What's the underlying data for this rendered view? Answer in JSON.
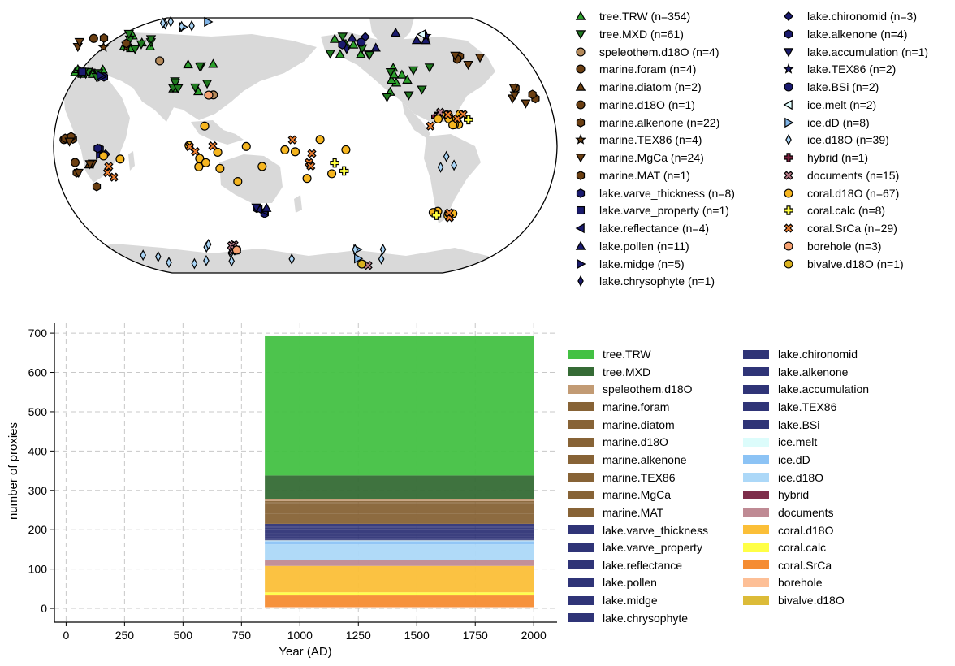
{
  "chart_data": [
    {
      "type": "scatter",
      "subtype": "map",
      "projection": "Robinson",
      "legend_placement": "right",
      "legend_columns": 2,
      "series": [
        {
          "name": "tree.TRW (n=354)",
          "marker": "triangle-up",
          "color": "#2ca02c"
        },
        {
          "name": "tree.MXD (n=61)",
          "marker": "triangle-down",
          "color": "#1f7a1f"
        },
        {
          "name": "speleothem.d18O (n=4)",
          "marker": "circle",
          "color": "#b58a5a"
        },
        {
          "name": "marine.foram (n=4)",
          "marker": "circle",
          "color": "#6b3f12"
        },
        {
          "name": "marine.diatom (n=2)",
          "marker": "triangle-up",
          "color": "#6b3f12"
        },
        {
          "name": "marine.d18O (n=1)",
          "marker": "circle",
          "color": "#6b3f12"
        },
        {
          "name": "marine.alkenone (n=22)",
          "marker": "hexagon",
          "color": "#6b3f12"
        },
        {
          "name": "marine.TEX86 (n=4)",
          "marker": "star",
          "color": "#6b3f12"
        },
        {
          "name": "marine.MgCa (n=24)",
          "marker": "triangle-down",
          "color": "#6b3f12"
        },
        {
          "name": "marine.MAT (n=1)",
          "marker": "hexagon",
          "color": "#6b3f12"
        },
        {
          "name": "lake.varve_thickness (n=8)",
          "marker": "hexagon",
          "color": "#1a1a6e"
        },
        {
          "name": "lake.varve_property (n=1)",
          "marker": "square",
          "color": "#1a1a6e"
        },
        {
          "name": "lake.reflectance (n=4)",
          "marker": "triangle-left",
          "color": "#1a1a6e"
        },
        {
          "name": "lake.pollen (n=11)",
          "marker": "triangle-up",
          "color": "#1a1a6e"
        },
        {
          "name": "lake.midge (n=5)",
          "marker": "triangle-right",
          "color": "#1a1a6e"
        },
        {
          "name": "lake.chrysophyte (n=1)",
          "marker": "thin-diamond",
          "color": "#1a1a6e"
        },
        {
          "name": "lake.chironomid (n=3)",
          "marker": "diamond",
          "color": "#1a1a6e"
        },
        {
          "name": "lake.alkenone (n=4)",
          "marker": "hexagon",
          "color": "#1a1a6e"
        },
        {
          "name": "lake.accumulation (n=1)",
          "marker": "triangle-down",
          "color": "#1a1a6e"
        },
        {
          "name": "lake.TEX86 (n=2)",
          "marker": "star",
          "color": "#1a1a6e"
        },
        {
          "name": "lake.BSi (n=2)",
          "marker": "circle",
          "color": "#1a1a6e"
        },
        {
          "name": "ice.melt (n=2)",
          "marker": "triangle-left",
          "color": "#e0ffff"
        },
        {
          "name": "ice.dD (n=8)",
          "marker": "triangle-right",
          "color": "#7fb3e6"
        },
        {
          "name": "ice.d18O (n=39)",
          "marker": "thin-diamond",
          "color": "#a9d4f5"
        },
        {
          "name": "hybrid (n=1)",
          "marker": "plus",
          "color": "#7a1f3d"
        },
        {
          "name": "documents (n=15)",
          "marker": "x",
          "color": "#c0808f"
        },
        {
          "name": "coral.d18O (n=67)",
          "marker": "circle",
          "color": "#f5b51f"
        },
        {
          "name": "coral.calc (n=8)",
          "marker": "plus",
          "color": "#ffff40"
        },
        {
          "name": "coral.SrCa (n=29)",
          "marker": "x",
          "color": "#f08030"
        },
        {
          "name": "borehole (n=3)",
          "marker": "circle",
          "color": "#f5a070"
        },
        {
          "name": "bivalve.d18O (n=1)",
          "marker": "circle",
          "color": "#d9b11f"
        }
      ]
    },
    {
      "type": "area",
      "stacked": true,
      "xlabel": "Year (AD)",
      "ylabel": "number of proxies",
      "xlim": [
        -50,
        2100
      ],
      "ylim": [
        -35,
        725
      ],
      "xticks": [
        "0",
        "250",
        "500",
        "750",
        "1000",
        "1250",
        "1500",
        "1750",
        "2000"
      ],
      "yticks": [
        "0",
        "100",
        "200",
        "300",
        "400",
        "500",
        "600",
        "700"
      ],
      "grid": true,
      "legend_placement": "right",
      "legend_columns": 2,
      "x_range": [
        850,
        2000
      ],
      "series": [
        {
          "name": "tree.TRW",
          "value": 354,
          "color": "#43c143"
        },
        {
          "name": "tree.MXD",
          "value": 61,
          "color": "#356b35"
        },
        {
          "name": "speleothem.d18O",
          "value": 4,
          "color": "#c29b74"
        },
        {
          "name": "marine.foram",
          "value": 4,
          "color": "#876336"
        },
        {
          "name": "marine.diatom",
          "value": 2,
          "color": "#876336"
        },
        {
          "name": "marine.d18O",
          "value": 1,
          "color": "#876336"
        },
        {
          "name": "marine.alkenone",
          "value": 22,
          "color": "#876336"
        },
        {
          "name": "marine.TEX86",
          "value": 4,
          "color": "#876336"
        },
        {
          "name": "marine.MgCa",
          "value": 24,
          "color": "#876336"
        },
        {
          "name": "marine.MAT",
          "value": 1,
          "color": "#876336"
        },
        {
          "name": "lake.varve_thickness",
          "value": 8,
          "color": "#2f3477"
        },
        {
          "name": "lake.varve_property",
          "value": 1,
          "color": "#2f3477"
        },
        {
          "name": "lake.reflectance",
          "value": 4,
          "color": "#2f3477"
        },
        {
          "name": "lake.pollen",
          "value": 11,
          "color": "#2f3477"
        },
        {
          "name": "lake.midge",
          "value": 5,
          "color": "#2f3477"
        },
        {
          "name": "lake.chrysophyte",
          "value": 1,
          "color": "#2f3477"
        },
        {
          "name": "lake.chironomid",
          "value": 3,
          "color": "#2f3477"
        },
        {
          "name": "lake.alkenone",
          "value": 4,
          "color": "#2f3477"
        },
        {
          "name": "lake.accumulation",
          "value": 1,
          "color": "#2f3477"
        },
        {
          "name": "lake.TEX86",
          "value": 2,
          "color": "#2f3477"
        },
        {
          "name": "lake.BSi",
          "value": 2,
          "color": "#2f3477"
        },
        {
          "name": "ice.melt",
          "value": 2,
          "color": "#dcfcfb"
        },
        {
          "name": "ice.dD",
          "value": 8,
          "color": "#8cc3f5"
        },
        {
          "name": "ice.d18O",
          "value": 39,
          "color": "#acd8f8"
        },
        {
          "name": "hybrid",
          "value": 1,
          "color": "#7d2d4a"
        },
        {
          "name": "documents",
          "value": 15,
          "color": "#bf8a94"
        },
        {
          "name": "coral.d18O",
          "value": 67,
          "color": "#fbbf38"
        },
        {
          "name": "coral.calc",
          "value": 8,
          "color": "#ffff46"
        },
        {
          "name": "coral.SrCa",
          "value": 29,
          "color": "#f58c32"
        },
        {
          "name": "borehole",
          "value": 3,
          "color": "#fdbf96"
        },
        {
          "name": "bivalve.d18O",
          "value": 1,
          "color": "#dcbb38"
        }
      ]
    }
  ]
}
